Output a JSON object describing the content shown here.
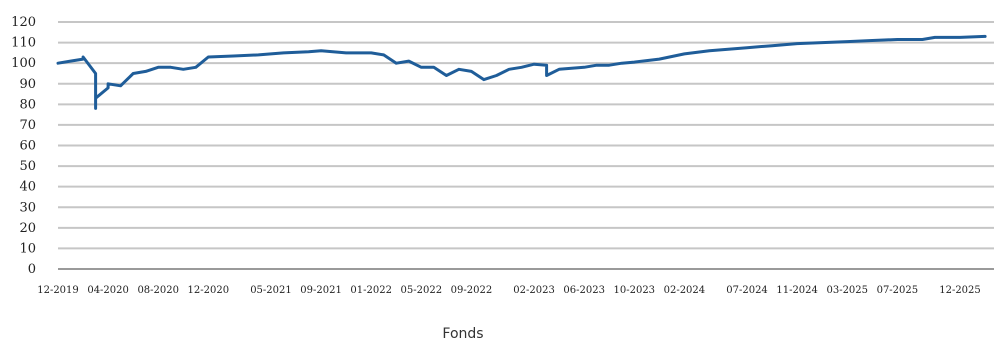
{
  "chart_data": {
    "type": "line",
    "ylim": [
      0,
      120
    ],
    "yticks": [
      "120",
      "110",
      "100",
      "90",
      "80",
      "70",
      "60",
      "50",
      "40",
      "30",
      "20",
      "10",
      "0"
    ],
    "xticks": [
      "12-2019",
      "04-2020",
      "08-2020",
      "12-2020",
      "05-2021",
      "09-2021",
      "01-2022",
      "05-2022",
      "09-2022",
      "02-2023",
      "06-2023",
      "10-2023",
      "02-2024",
      "07-2024",
      "11-2024",
      "03-2025",
      "07-2025",
      "12-2025"
    ],
    "grid": true,
    "legend_position": "bottom-center",
    "colors": {
      "line": "#1f5d99",
      "grid": "#c6c6c6"
    },
    "series": [
      {
        "name": "Fonds",
        "x": [
          "2019-12",
          "2020-01",
          "2020-02",
          "2020-02",
          "2020-03",
          "2020-03",
          "2020-03",
          "2020-04",
          "2020-04",
          "2020-05",
          "2020-06",
          "2020-07",
          "2020-08",
          "2020-09",
          "2020-10",
          "2020-11",
          "2020-12",
          "2021-02",
          "2021-04",
          "2021-06",
          "2021-08",
          "2021-09",
          "2021-11",
          "2022-01",
          "2022-02",
          "2022-03",
          "2022-04",
          "2022-05",
          "2022-06",
          "2022-07",
          "2022-08",
          "2022-09",
          "2022-10",
          "2022-11",
          "2022-12",
          "2023-01",
          "2023-02",
          "2023-03",
          "2023-03",
          "2023-04",
          "2023-05",
          "2023-06",
          "2023-07",
          "2023-08",
          "2023-09",
          "2023-10",
          "2023-12",
          "2024-02",
          "2024-04",
          "2024-07",
          "2024-09",
          "2024-11",
          "2025-01",
          "2025-03",
          "2025-05",
          "2025-07",
          "2025-09",
          "2025-10",
          "2025-12",
          "2026-02"
        ],
        "values": [
          100,
          101,
          102,
          103,
          95,
          78,
          83,
          88,
          90,
          89,
          95,
          96,
          98,
          98,
          97,
          98,
          103,
          103.5,
          104,
          105,
          105.5,
          106,
          105,
          105,
          104,
          100,
          101,
          98,
          98,
          94,
          97,
          96,
          92,
          94,
          97,
          98,
          99.5,
          99,
          94,
          97,
          97.5,
          98,
          99,
          99,
          100,
          100.5,
          102,
          104.5,
          106,
          107.5,
          108.5,
          109.5,
          110,
          110.5,
          111,
          111.5,
          111.5,
          112.5,
          112.5,
          113
        ]
      }
    ]
  }
}
